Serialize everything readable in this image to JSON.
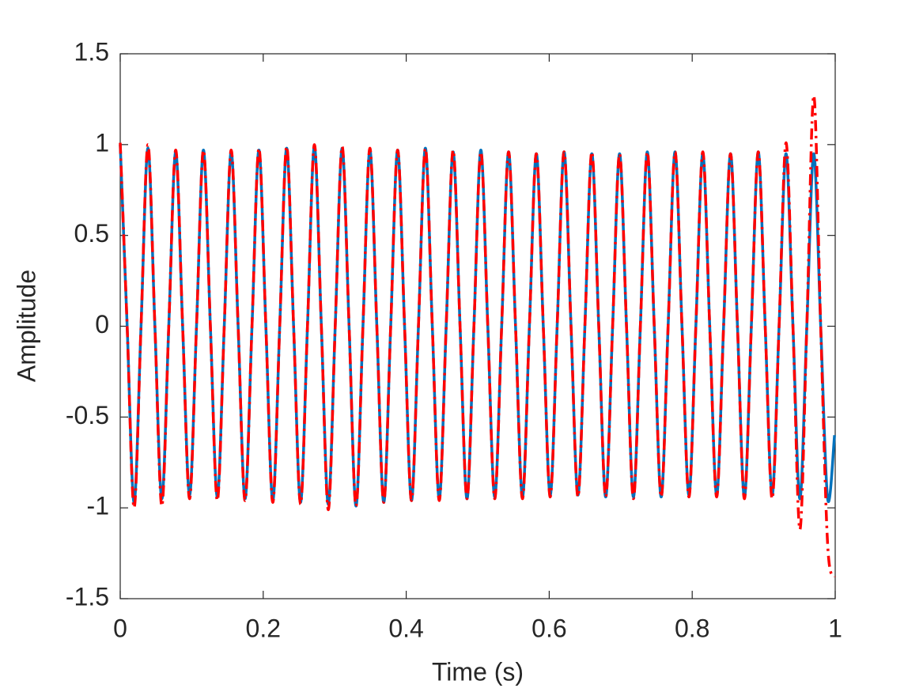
{
  "chart_data": {
    "type": "line",
    "xlabel": "Time (s)",
    "ylabel": "Amplitude",
    "xlim": [
      0,
      1
    ],
    "xticks": [
      0,
      0.2,
      0.4,
      0.6,
      0.8,
      1
    ],
    "ylim": [
      -1.5,
      1.5
    ],
    "yticks": [
      -1.5,
      -1,
      -0.5,
      0,
      0.5,
      1,
      1.5
    ],
    "x": [
      0,
      0.0097,
      0.0194,
      0.0291,
      0.0388,
      0.0485,
      0.0582,
      0.0679,
      0.0776,
      0.0873,
      0.097,
      0.1067,
      0.1164,
      0.1261,
      0.1358,
      0.1455,
      0.1552,
      0.1649,
      0.1746,
      0.1843,
      0.194,
      0.2037,
      0.2134,
      0.2231,
      0.2328,
      0.2425,
      0.2522,
      0.2619,
      0.2716,
      0.2813,
      0.291,
      0.3007,
      0.3104,
      0.3201,
      0.3298,
      0.3395,
      0.3492,
      0.3589,
      0.3686,
      0.3783,
      0.388,
      0.3977,
      0.4074,
      0.4171,
      0.4268,
      0.4365,
      0.4462,
      0.4559,
      0.4656,
      0.4753,
      0.485,
      0.4947,
      0.5044,
      0.5141,
      0.5238,
      0.5335,
      0.5432,
      0.5529,
      0.5626,
      0.5723,
      0.582,
      0.5917,
      0.6014,
      0.6111,
      0.6208,
      0.6305,
      0.6402,
      0.6499,
      0.6596,
      0.6693,
      0.679,
      0.6887,
      0.6984,
      0.7081,
      0.7178,
      0.7275,
      0.7372,
      0.7469,
      0.7566,
      0.7663,
      0.776,
      0.7857,
      0.7954,
      0.8051,
      0.8148,
      0.8245,
      0.8342,
      0.8439,
      0.8536,
      0.8633,
      0.873,
      0.8827,
      0.8924,
      0.9021,
      0.9118,
      0.9215,
      0.9312,
      0.9409,
      0.9506,
      0.9603,
      0.97,
      0.9797,
      0.9894,
      0.9991
    ],
    "series": [
      {
        "color": "#0072bd",
        "style": "solid",
        "values": [
          1,
          0,
          -0.97,
          0,
          0.98,
          0,
          -0.95,
          0,
          0.96,
          0,
          -0.93,
          0,
          0.97,
          0,
          -0.94,
          0,
          0.96,
          0,
          -0.95,
          0,
          0.97,
          0,
          -0.96,
          0,
          0.98,
          0,
          -0.97,
          0,
          0.99,
          0,
          -0.98,
          0,
          0.98,
          0,
          -0.99,
          0,
          0.97,
          0,
          -0.97,
          0,
          0.97,
          0,
          -0.96,
          0,
          0.98,
          0,
          -0.95,
          0,
          0.96,
          0,
          -0.95,
          0,
          0.97,
          0,
          -0.94,
          0,
          0.96,
          0,
          -0.94,
          0,
          0.95,
          0,
          -0.93,
          0,
          0.96,
          0,
          -0.93,
          0,
          0.95,
          0,
          -0.94,
          0,
          0.95,
          0,
          -0.94,
          0,
          0.96,
          0,
          -0.94,
          0,
          0.96,
          0,
          -0.93,
          0,
          0.95,
          0,
          -0.93,
          0,
          0.95,
          0,
          -0.94,
          0,
          0.96,
          0,
          -0.93,
          0,
          0.95,
          0,
          -0.95,
          0,
          0.95,
          0,
          -0.95,
          -0.6
        ]
      },
      {
        "color": "#ff0000",
        "style": "dashdot",
        "values": [
          1.01,
          0,
          -1,
          0,
          1,
          0,
          -0.99,
          0,
          0.97,
          0,
          -0.95,
          0,
          0.97,
          0,
          -0.96,
          0,
          0.97,
          0,
          -0.96,
          0,
          0.98,
          0,
          -0.97,
          0,
          0.99,
          0,
          -0.98,
          0,
          1,
          0,
          -1.01,
          0,
          0.99,
          0,
          -0.99,
          0,
          0.98,
          0,
          -0.97,
          0,
          0.97,
          0,
          -0.96,
          0,
          0.98,
          0,
          -0.96,
          0,
          0.97,
          0,
          -0.95,
          0,
          0.96,
          0,
          -0.95,
          0,
          0.96,
          0,
          -0.95,
          0,
          0.95,
          0,
          -0.94,
          0,
          0.96,
          0,
          -0.94,
          0,
          0.96,
          0,
          -0.94,
          0,
          0.95,
          0,
          -0.95,
          0,
          0.96,
          0,
          -0.94,
          0,
          0.96,
          0,
          -0.94,
          0,
          0.96,
          0,
          -0.94,
          0,
          0.95,
          0,
          -0.95,
          0,
          0.96,
          0,
          -0.95,
          0,
          1.01,
          0,
          -1.12,
          0,
          1.27,
          0,
          -1.2,
          -1.38
        ]
      }
    ]
  }
}
